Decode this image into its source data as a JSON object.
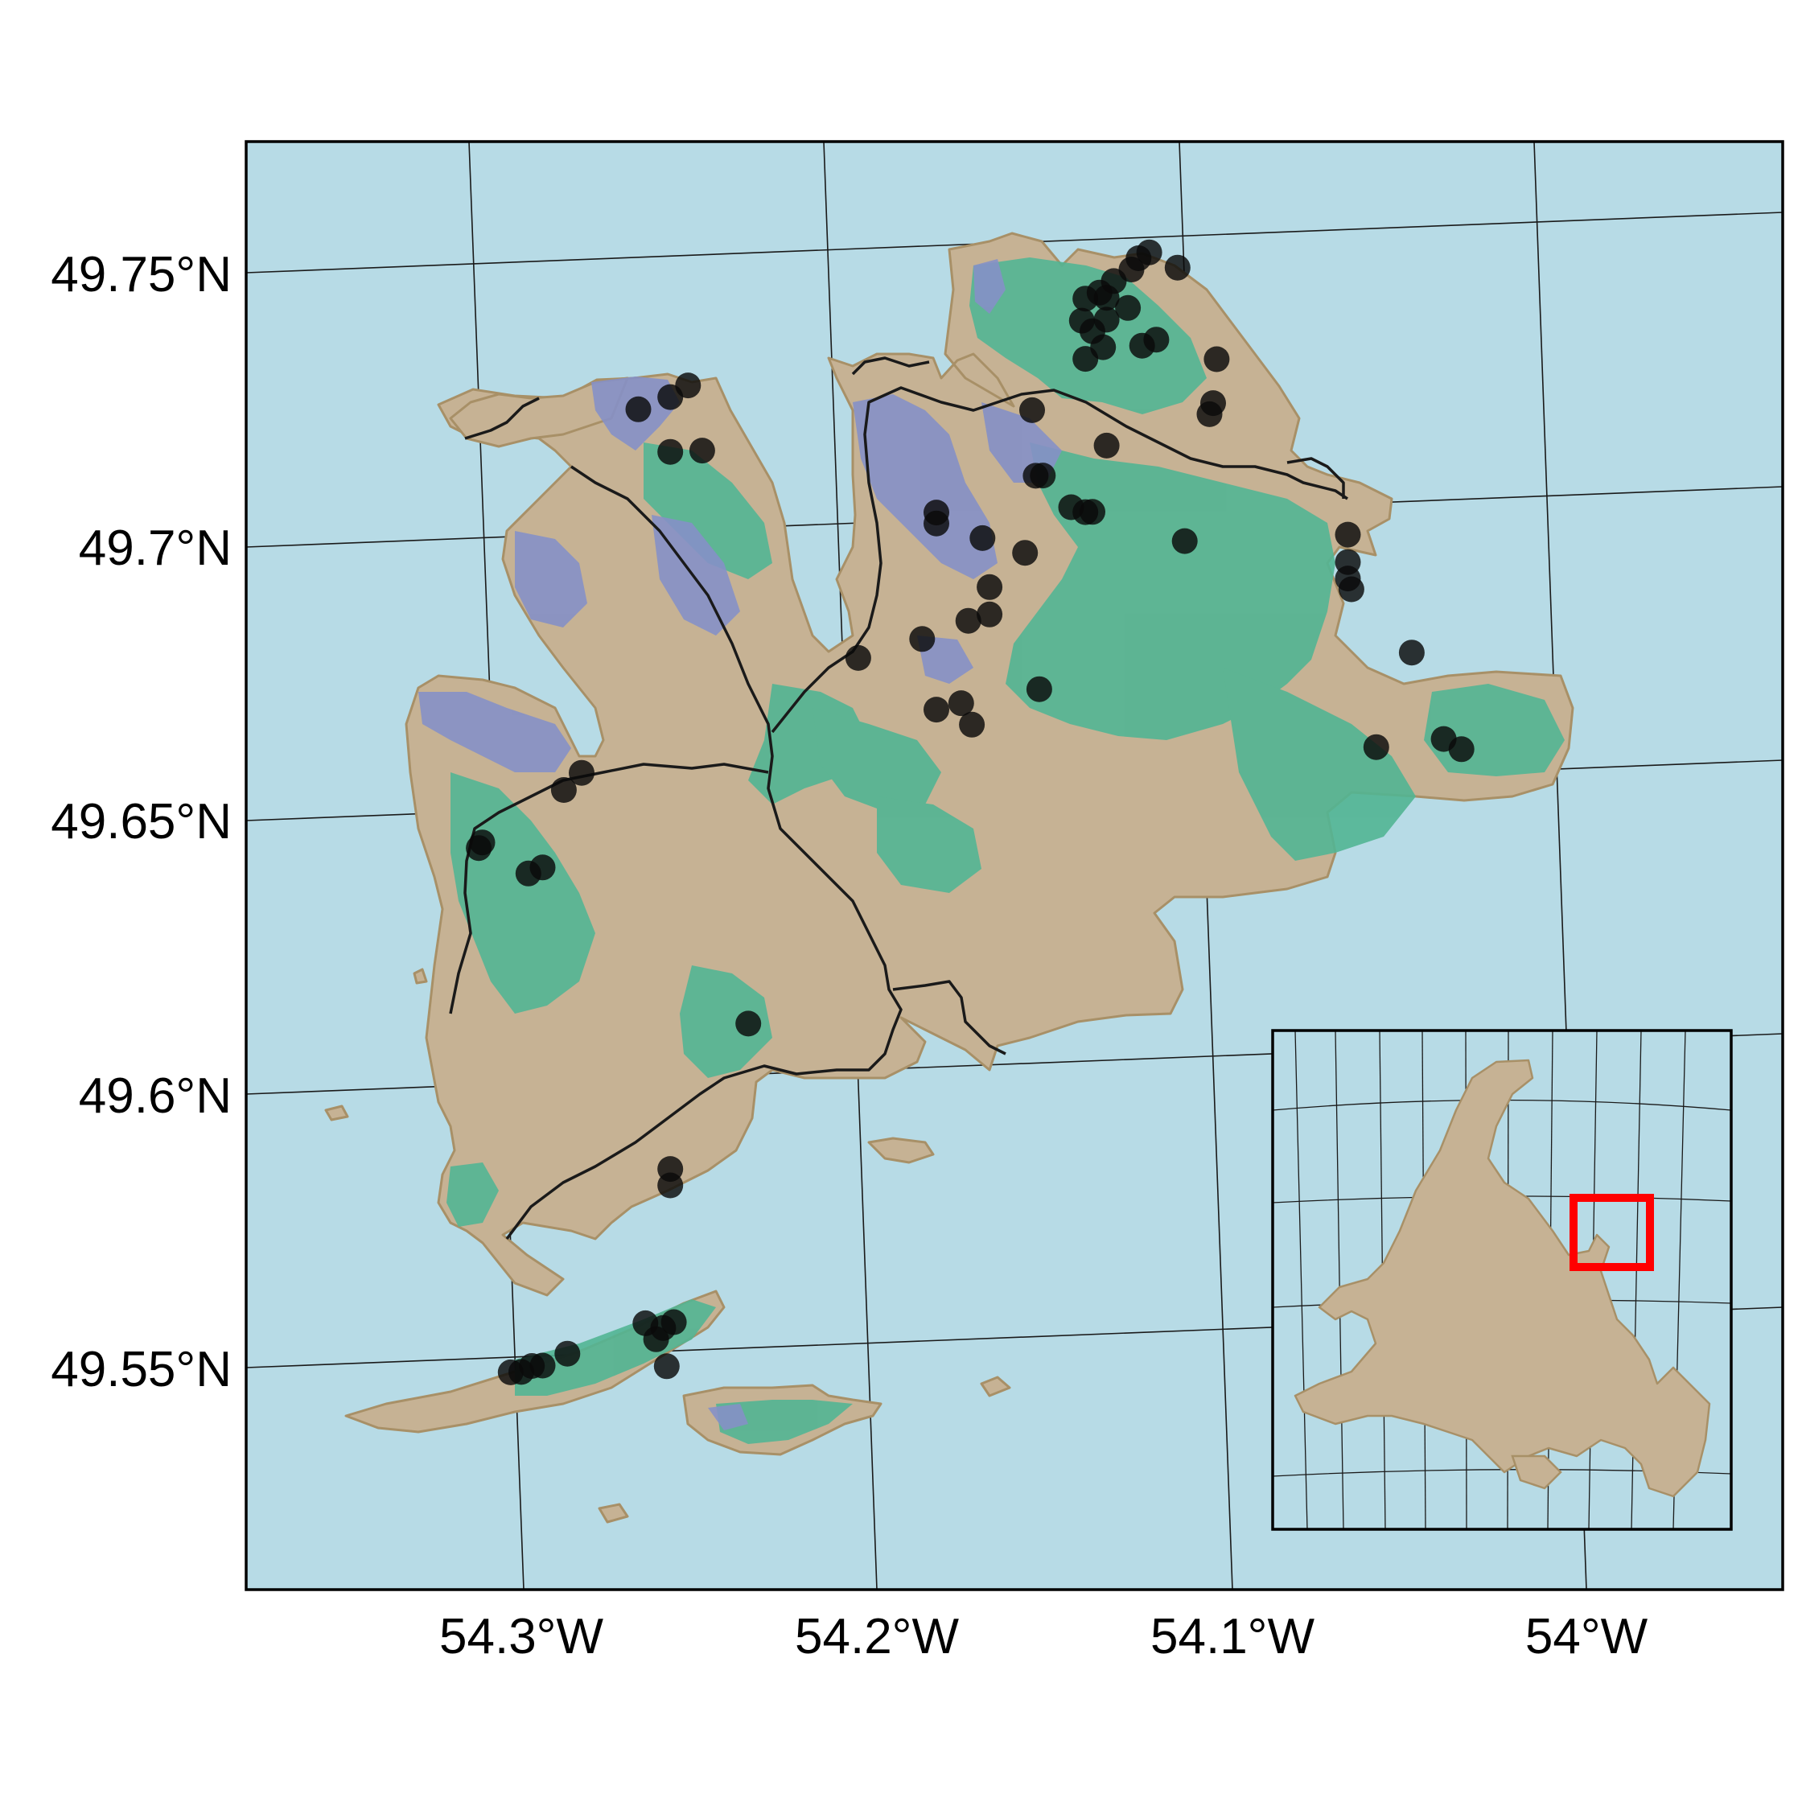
{
  "colors": {
    "water": "#b7dbe6",
    "land": "#c6b294",
    "coast": "#a89067",
    "green_layer": "#52b593",
    "purple_layer": "#8590c6",
    "points": "#0a0a0a",
    "roads": "#1a1a1a",
    "graticule": "#1a1a1a",
    "inset_box": "#ff0000"
  },
  "axes": {
    "latitude_labels": [
      "49.75°N",
      "49.7°N",
      "49.65°N",
      "49.6°N",
      "49.55°N"
    ],
    "longitude_labels": [
      "54.3°W",
      "54.2°W",
      "54.1°W",
      "54°W"
    ]
  },
  "map": {
    "features": [
      "coastline",
      "roads",
      "green-vegetation-layer",
      "purple-vegetation-layer",
      "sample-points"
    ],
    "inset": {
      "region": "Newfoundland",
      "highlight": "red-extent-box"
    }
  },
  "sample_points": [
    {
      "lon": -54.267,
      "lat": 49.724
    },
    {
      "lon": -54.258,
      "lat": 49.726
    },
    {
      "lon": -54.253,
      "lat": 49.728
    },
    {
      "lon": -54.258,
      "lat": 49.716
    },
    {
      "lon": -54.249,
      "lat": 49.716
    },
    {
      "lon": -54.137,
      "lat": 49.742
    },
    {
      "lon": -54.133,
      "lat": 49.744
    },
    {
      "lon": -54.128,
      "lat": 49.746
    },
    {
      "lon": -54.126,
      "lat": 49.748
    },
    {
      "lon": -54.123,
      "lat": 49.749
    },
    {
      "lon": -54.115,
      "lat": 49.746
    },
    {
      "lon": -54.141,
      "lat": 49.741
    },
    {
      "lon": -54.135,
      "lat": 49.741
    },
    {
      "lon": -54.129,
      "lat": 49.739
    },
    {
      "lon": -54.142,
      "lat": 49.737
    },
    {
      "lon": -54.139,
      "lat": 49.735
    },
    {
      "lon": -54.135,
      "lat": 49.737
    },
    {
      "lon": -54.136,
      "lat": 49.732
    },
    {
      "lon": -54.141,
      "lat": 49.73
    },
    {
      "lon": -54.125,
      "lat": 49.732
    },
    {
      "lon": -54.121,
      "lat": 49.733
    },
    {
      "lon": -54.104,
      "lat": 49.729
    },
    {
      "lon": -54.105,
      "lat": 49.721
    },
    {
      "lon": -54.106,
      "lat": 49.719
    },
    {
      "lon": -54.156,
      "lat": 49.721
    },
    {
      "lon": -54.135,
      "lat": 49.714
    },
    {
      "lon": -54.155,
      "lat": 49.709
    },
    {
      "lon": -54.153,
      "lat": 49.709
    },
    {
      "lon": -54.145,
      "lat": 49.703
    },
    {
      "lon": -54.141,
      "lat": 49.702
    },
    {
      "lon": -54.139,
      "lat": 49.702
    },
    {
      "lon": -54.113,
      "lat": 49.696
    },
    {
      "lon": -54.183,
      "lat": 49.703
    },
    {
      "lon": -54.183,
      "lat": 49.701
    },
    {
      "lon": -54.17,
      "lat": 49.698
    },
    {
      "lon": -54.158,
      "lat": 49.695
    },
    {
      "lon": -54.168,
      "lat": 49.689
    },
    {
      "lon": -54.168,
      "lat": 49.684
    },
    {
      "lon": -54.174,
      "lat": 49.683
    },
    {
      "lon": -54.187,
      "lat": 49.68
    },
    {
      "lon": -54.205,
      "lat": 49.677
    },
    {
      "lon": -54.154,
      "lat": 49.67
    },
    {
      "lon": -54.176,
      "lat": 49.668
    },
    {
      "lon": -54.183,
      "lat": 49.667
    },
    {
      "lon": -54.173,
      "lat": 49.664
    },
    {
      "lon": -54.067,
      "lat": 49.696
    },
    {
      "lon": -54.067,
      "lat": 49.691
    },
    {
      "lon": -54.067,
      "lat": 49.688
    },
    {
      "lon": -54.066,
      "lat": 49.686
    },
    {
      "lon": -54.049,
      "lat": 49.674
    },
    {
      "lon": -54.04,
      "lat": 49.658
    },
    {
      "lon": -54.035,
      "lat": 49.656
    },
    {
      "lon": -54.059,
      "lat": 49.657
    },
    {
      "lon": -54.283,
      "lat": 49.658
    },
    {
      "lon": -54.288,
      "lat": 49.655
    },
    {
      "lon": -54.312,
      "lat": 49.645
    },
    {
      "lon": -54.311,
      "lat": 49.646
    },
    {
      "lon": -54.298,
      "lat": 49.64
    },
    {
      "lon": -54.294,
      "lat": 49.641
    },
    {
      "lon": -54.236,
      "lat": 49.611
    },
    {
      "lon": -54.258,
      "lat": 49.585
    },
    {
      "lon": -54.258,
      "lat": 49.582
    },
    {
      "lon": -54.265,
      "lat": 49.557
    },
    {
      "lon": -54.26,
      "lat": 49.556
    },
    {
      "lon": -54.257,
      "lat": 49.557
    },
    {
      "lon": -54.262,
      "lat": 49.554
    },
    {
      "lon": -54.259,
      "lat": 49.549
    },
    {
      "lon": -54.287,
      "lat": 49.552
    },
    {
      "lon": -54.294,
      "lat": 49.55
    },
    {
      "lon": -54.297,
      "lat": 49.55
    },
    {
      "lon": -54.3,
      "lat": 49.549
    },
    {
      "lon": -54.303,
      "lat": 49.549
    }
  ]
}
